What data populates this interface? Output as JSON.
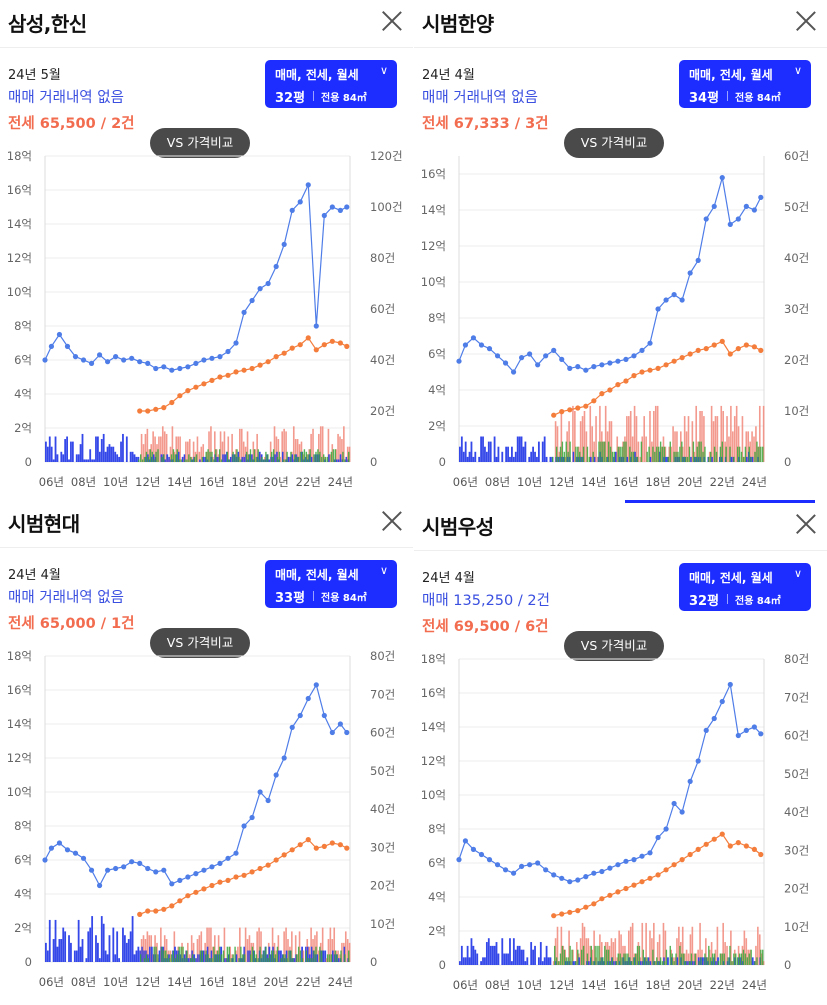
{
  "ui": {
    "vs_label": "VS 가격비교",
    "filter_label": "매매, 전세, 월세",
    "chevron": "∨",
    "area_label": "전용 84㎡"
  },
  "colors": {
    "sale": "#4f7de8",
    "jeonse": "#f47d3c",
    "bar_sale": "#3447e8",
    "bar_jeonse": "#f08070",
    "bar_wolse": "#3aa63a",
    "accent": "#1d2cff"
  },
  "panels": [
    {
      "title": "삼성,한신",
      "date": "24년 5월",
      "sale_text": "매매 거래내역 없음",
      "jeonse_text": "전세 65,500 / 2건",
      "pyeong": "32평"
    },
    {
      "title": "시범한양",
      "date": "24년 4월",
      "sale_text": "매매 거래내역 없음",
      "jeonse_text": "전세 67,333 / 3건",
      "pyeong": "34평"
    },
    {
      "title": "시범현대",
      "date": "24년 4월",
      "sale_text": "매매 거래내역 없음",
      "jeonse_text": "전세 65,000 / 1건",
      "pyeong": "33평"
    },
    {
      "title": "시범우성",
      "date": "24년 4월",
      "sale_text": "매매 135,250 / 2건",
      "jeonse_text": "전세 69,500 / 6건",
      "pyeong": "32평"
    }
  ],
  "chart_data": [
    {
      "type": "line",
      "panel": "삼성,한신",
      "x_ticks": [
        "06년",
        "08년",
        "10년",
        "12년",
        "14년",
        "16년",
        "18년",
        "20년",
        "22년",
        "24년"
      ],
      "y_left_ticks": [
        "0",
        "2억",
        "4억",
        "6억",
        "8억",
        "10억",
        "12억",
        "14억",
        "16억",
        "18억"
      ],
      "ylim_left": [
        0,
        18
      ],
      "y_right_ticks": [
        "0",
        "20건",
        "40건",
        "60건",
        "80건",
        "100건",
        "120건"
      ],
      "ylim_right": [
        0,
        120
      ],
      "series": [
        {
          "name": "매매",
          "x": [
            2005.6,
            2006,
            2006.5,
            2007,
            2007.5,
            2008,
            2008.5,
            2009,
            2009.5,
            2010,
            2010.5,
            2011,
            2011.5,
            2012,
            2012.5,
            2013,
            2013.5,
            2014,
            2014.5,
            2015,
            2015.5,
            2016,
            2016.5,
            2017,
            2017.5,
            2018,
            2018.5,
            2019,
            2019.5,
            2020,
            2020.5,
            2021,
            2021.5,
            2022,
            2022.5,
            2023,
            2023.5,
            2024,
            2024.4
          ],
          "y": [
            6.0,
            6.8,
            7.5,
            6.8,
            6.2,
            6.0,
            5.8,
            6.3,
            5.9,
            6.2,
            6.0,
            6.1,
            5.9,
            5.8,
            5.5,
            5.6,
            5.4,
            5.5,
            5.6,
            5.8,
            6.0,
            6.1,
            6.2,
            6.5,
            7.0,
            8.8,
            9.5,
            10.2,
            10.5,
            11.5,
            12.8,
            14.8,
            15.3,
            16.3,
            8.0,
            14.5,
            15.0,
            14.8,
            15.0
          ]
        },
        {
          "name": "전세",
          "x": [
            2011.5,
            2012,
            2012.5,
            2013,
            2013.5,
            2014,
            2014.5,
            2015,
            2015.5,
            2016,
            2016.5,
            2017,
            2017.5,
            2018,
            2018.5,
            2019,
            2019.5,
            2020,
            2020.5,
            2021,
            2021.5,
            2022,
            2022.5,
            2023,
            2023.5,
            2024,
            2024.4
          ],
          "y": [
            3.0,
            3.0,
            3.1,
            3.2,
            3.5,
            3.9,
            4.2,
            4.4,
            4.6,
            4.8,
            5.0,
            5.1,
            5.3,
            5.4,
            5.5,
            5.7,
            5.9,
            6.2,
            6.4,
            6.7,
            6.9,
            7.3,
            6.6,
            6.9,
            7.1,
            7.0,
            6.8
          ]
        }
      ],
      "bars": {
        "sale_max_count": 12,
        "jeonse_max_count": 15,
        "wolse_max_count": 10
      }
    },
    {
      "type": "line",
      "panel": "시범한양",
      "x_ticks": [
        "06년",
        "08년",
        "10년",
        "12년",
        "14년",
        "16년",
        "18년",
        "20년",
        "22년",
        "24년"
      ],
      "y_left_ticks": [
        "0",
        "2억",
        "4억",
        "6억",
        "8억",
        "10억",
        "12억",
        "14억",
        "16억"
      ],
      "ylim_left": [
        0,
        17
      ],
      "y_right_ticks": [
        "0",
        "10건",
        "20건",
        "30건",
        "40건",
        "50건",
        "60건"
      ],
      "ylim_right": [
        0,
        60
      ],
      "series": [
        {
          "name": "매매",
          "x": [
            2005.6,
            2006,
            2006.5,
            2007,
            2007.5,
            2008,
            2008.5,
            2009,
            2009.5,
            2010,
            2010.5,
            2011,
            2011.5,
            2012,
            2012.5,
            2013,
            2013.5,
            2014,
            2014.5,
            2015,
            2015.5,
            2016,
            2016.5,
            2017,
            2017.5,
            2018,
            2018.5,
            2019,
            2019.5,
            2020,
            2020.5,
            2021,
            2021.5,
            2022,
            2022.5,
            2023,
            2023.5,
            2024,
            2024.4
          ],
          "y": [
            5.6,
            6.5,
            6.9,
            6.5,
            6.3,
            5.9,
            5.5,
            5.0,
            5.8,
            6.0,
            5.4,
            5.9,
            6.2,
            5.7,
            5.2,
            5.3,
            5.1,
            5.3,
            5.4,
            5.5,
            5.6,
            5.7,
            5.9,
            6.2,
            6.6,
            8.5,
            9.0,
            9.3,
            9.0,
            10.5,
            11.2,
            13.5,
            14.2,
            15.8,
            13.2,
            13.5,
            14.2,
            14.0,
            14.7
          ]
        },
        {
          "name": "전세",
          "x": [
            2011.5,
            2012,
            2012.5,
            2013,
            2013.5,
            2014,
            2014.5,
            2015,
            2015.5,
            2016,
            2016.5,
            2017,
            2017.5,
            2018,
            2018.5,
            2019,
            2019.5,
            2020,
            2020.5,
            2021,
            2021.5,
            2022,
            2022.5,
            2023,
            2023.5,
            2024,
            2024.4
          ],
          "y": [
            2.6,
            2.8,
            2.9,
            3.0,
            3.1,
            3.4,
            3.8,
            4.0,
            4.3,
            4.5,
            4.8,
            5.0,
            5.1,
            5.2,
            5.4,
            5.6,
            5.8,
            6.0,
            6.2,
            6.3,
            6.5,
            6.7,
            6.0,
            6.3,
            6.5,
            6.4,
            6.2
          ]
        }
      ],
      "bars": {
        "sale_max_count": 6,
        "jeonse_max_count": 12,
        "wolse_max_count": 8
      }
    },
    {
      "type": "line",
      "panel": "시범현대",
      "x_ticks": [
        "06년",
        "08년",
        "10년",
        "12년",
        "14년",
        "16년",
        "18년",
        "20년",
        "22년",
        "24년"
      ],
      "y_left_ticks": [
        "0",
        "2억",
        "4억",
        "6억",
        "8억",
        "10억",
        "12억",
        "14억",
        "16억",
        "18억"
      ],
      "ylim_left": [
        0,
        18
      ],
      "y_right_ticks": [
        "0",
        "10건",
        "20건",
        "30건",
        "40건",
        "50건",
        "60건",
        "70건",
        "80건"
      ],
      "ylim_right": [
        0,
        80
      ],
      "series": [
        {
          "name": "매매",
          "x": [
            2005.6,
            2006,
            2006.5,
            2007,
            2007.5,
            2008,
            2008.5,
            2009,
            2009.5,
            2010,
            2010.5,
            2011,
            2011.5,
            2012,
            2012.5,
            2013,
            2013.5,
            2014,
            2014.5,
            2015,
            2015.5,
            2016,
            2016.5,
            2017,
            2017.5,
            2018,
            2018.5,
            2019,
            2019.5,
            2020,
            2020.5,
            2021,
            2021.5,
            2022,
            2022.5,
            2023,
            2023.5,
            2024,
            2024.4
          ],
          "y": [
            6.0,
            6.7,
            7.0,
            6.6,
            6.4,
            6.1,
            5.4,
            4.5,
            5.4,
            5.5,
            5.6,
            5.9,
            5.8,
            5.5,
            5.3,
            5.4,
            4.6,
            4.8,
            5.0,
            5.2,
            5.4,
            5.6,
            5.8,
            6.1,
            6.4,
            8.0,
            8.5,
            10.0,
            9.5,
            11.0,
            12.0,
            13.8,
            14.5,
            15.5,
            16.3,
            14.5,
            13.5,
            14.0,
            13.5
          ]
        },
        {
          "name": "전세",
          "x": [
            2011.5,
            2012,
            2012.5,
            2013,
            2013.5,
            2014,
            2014.5,
            2015,
            2015.5,
            2016,
            2016.5,
            2017,
            2017.5,
            2018,
            2018.5,
            2019,
            2019.5,
            2020,
            2020.5,
            2021,
            2021.5,
            2022,
            2022.5,
            2023,
            2023.5,
            2024,
            2024.4
          ],
          "y": [
            2.8,
            3.0,
            3.0,
            3.1,
            3.3,
            3.6,
            3.9,
            4.1,
            4.3,
            4.5,
            4.7,
            4.8,
            5.0,
            5.1,
            5.3,
            5.5,
            5.7,
            6.0,
            6.3,
            6.6,
            6.9,
            7.2,
            6.7,
            6.8,
            7.0,
            6.9,
            6.7
          ]
        }
      ],
      "bars": {
        "sale_max_count": 13,
        "jeonse_max_count": 10,
        "wolse_max_count": 8
      }
    },
    {
      "type": "line",
      "panel": "시범우성",
      "x_ticks": [
        "06년",
        "08년",
        "10년",
        "12년",
        "14년",
        "16년",
        "18년",
        "20년",
        "22년",
        "24년"
      ],
      "y_left_ticks": [
        "0",
        "2억",
        "4억",
        "6억",
        "8억",
        "10억",
        "12억",
        "14억",
        "16억",
        "18억"
      ],
      "ylim_left": [
        0,
        18
      ],
      "y_right_ticks": [
        "0",
        "10건",
        "20건",
        "30건",
        "40건",
        "50건",
        "60건",
        "70건",
        "80건"
      ],
      "ylim_right": [
        0,
        80
      ],
      "series": [
        {
          "name": "매매",
          "x": [
            2005.6,
            2006,
            2006.5,
            2007,
            2007.5,
            2008,
            2008.5,
            2009,
            2009.5,
            2010,
            2010.5,
            2011,
            2011.5,
            2012,
            2012.5,
            2013,
            2013.5,
            2014,
            2014.5,
            2015,
            2015.5,
            2016,
            2016.5,
            2017,
            2017.5,
            2018,
            2018.5,
            2019,
            2019.5,
            2020,
            2020.5,
            2021,
            2021.5,
            2022,
            2022.5,
            2023,
            2023.5,
            2024,
            2024.4
          ],
          "y": [
            6.2,
            7.3,
            6.8,
            6.5,
            6.2,
            5.9,
            5.6,
            5.4,
            5.8,
            5.9,
            6.0,
            5.6,
            5.3,
            5.1,
            4.9,
            5.0,
            5.2,
            5.4,
            5.5,
            5.7,
            5.9,
            6.1,
            6.2,
            6.4,
            6.6,
            7.5,
            8.0,
            9.5,
            9.0,
            10.8,
            12.0,
            13.8,
            14.5,
            15.5,
            16.5,
            13.5,
            13.8,
            14.0,
            13.6
          ]
        },
        {
          "name": "전세",
          "x": [
            2011.5,
            2012,
            2012.5,
            2013,
            2013.5,
            2014,
            2014.5,
            2015,
            2015.5,
            2016,
            2016.5,
            2017,
            2017.5,
            2018,
            2018.5,
            2019,
            2019.5,
            2020,
            2020.5,
            2021,
            2021.5,
            2022,
            2022.5,
            2023,
            2023.5,
            2024,
            2024.4
          ],
          "y": [
            2.9,
            3.0,
            3.1,
            3.2,
            3.4,
            3.6,
            3.9,
            4.1,
            4.3,
            4.5,
            4.7,
            4.9,
            5.1,
            5.3,
            5.6,
            5.9,
            6.2,
            6.5,
            6.8,
            7.1,
            7.4,
            7.7,
            7.0,
            7.2,
            7.0,
            6.8,
            6.5
          ]
        }
      ],
      "bars": {
        "sale_max_count": 8,
        "jeonse_max_count": 12,
        "wolse_max_count": 10
      }
    }
  ]
}
